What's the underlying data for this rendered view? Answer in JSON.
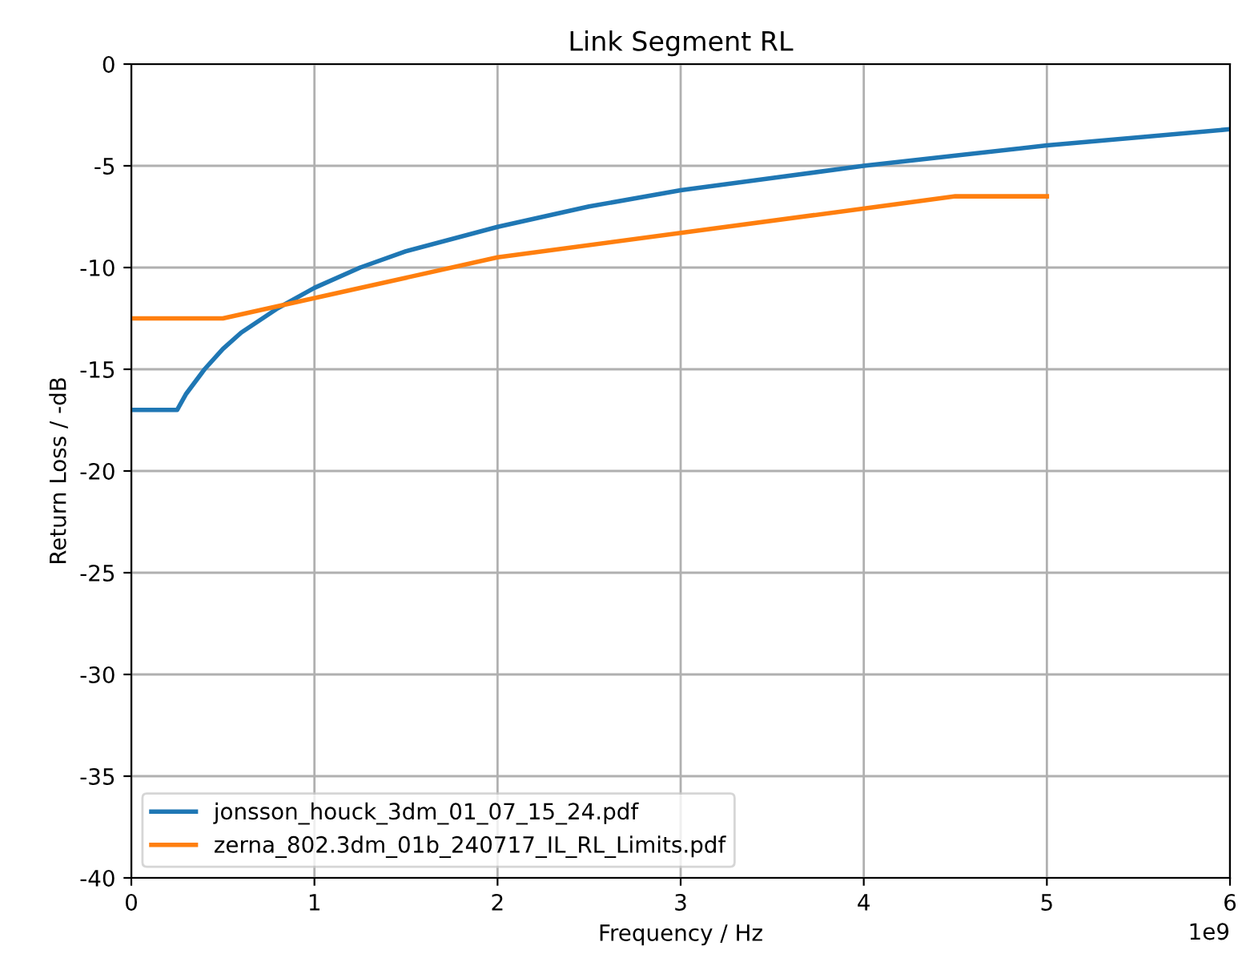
{
  "chart_data": {
    "type": "line",
    "title": "Link Segment RL",
    "xlabel": "Frequency / Hz",
    "ylabel": "Return Loss / -dB",
    "xlim": [
      0,
      6
    ],
    "xticks": [
      0,
      1,
      2,
      3,
      4,
      5,
      6
    ],
    "ylim": [
      -40,
      0
    ],
    "yticks": [
      -40,
      -35,
      -30,
      -25,
      -20,
      -15,
      -10,
      -5,
      0
    ],
    "grid": true,
    "legend": "bottom left",
    "line_style": "solid",
    "marker": "none",
    "annotations": [
      "1e9"
    ],
    "series": [
      {
        "name": "jonsson_houck_3dm_01_07_15_24.pdf",
        "color": "#1f77b4",
        "x": [
          0,
          0.25,
          0.3,
          0.4,
          0.5,
          0.6,
          0.8,
          1,
          1.25,
          1.5,
          2,
          2.5,
          3,
          3.5,
          4,
          4.5,
          5,
          5.5,
          6
        ],
        "values": [
          -17,
          -17,
          -16.2,
          -15.0,
          -14.0,
          -13.2,
          -12.0,
          -11.0,
          -10.0,
          -9.2,
          -8.0,
          -7.0,
          -6.2,
          -5.6,
          -5.0,
          -4.5,
          -4.0,
          -3.6,
          -3.2
        ]
      },
      {
        "name": "zerna_802.3dm_01b_240717_IL_RL_Limits.pdf",
        "color": "#ff7f0e",
        "x": [
          0,
          0.5,
          2,
          4.5,
          5
        ],
        "values": [
          -12.5,
          -12.5,
          -9.5,
          -6.5,
          -6.5
        ]
      }
    ]
  }
}
